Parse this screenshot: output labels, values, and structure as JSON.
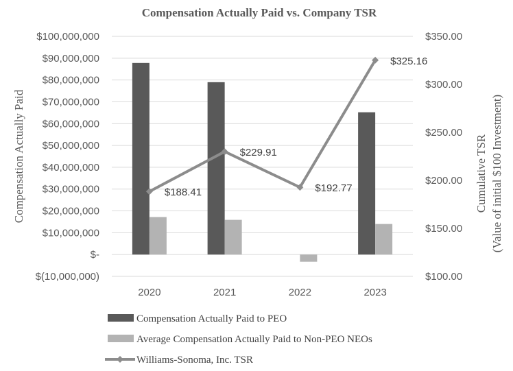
{
  "chart_data": {
    "type": "bar",
    "title": "Compensation Actually Paid vs. Company TSR",
    "categories": [
      "2020",
      "2021",
      "2022",
      "2023"
    ],
    "series": [
      {
        "name": "Compensation Actually Paid to PEO",
        "kind": "bar",
        "axis": "left",
        "color": "#595959",
        "values": [
          87800000,
          79000000,
          0,
          65200000
        ]
      },
      {
        "name": "Average Compensation Actually Paid to Non-PEO NEOs",
        "kind": "bar",
        "axis": "left",
        "color": "#b3b3b3",
        "values": [
          17200000,
          15900000,
          -3300000,
          14000000
        ]
      },
      {
        "name": "Williams-Sonoma, Inc. TSR",
        "kind": "line",
        "axis": "right",
        "color": "#8c8c8c",
        "values": [
          188.41,
          229.91,
          192.77,
          325.16
        ],
        "labels": [
          "$188.41",
          "$229.91",
          "$192.77",
          "$325.16"
        ]
      }
    ],
    "y_left": {
      "label": "Compensation Actually Paid",
      "ylim": [
        -10000000,
        100000000
      ],
      "ticks": [
        100000000,
        90000000,
        80000000,
        70000000,
        60000000,
        50000000,
        40000000,
        30000000,
        20000000,
        10000000,
        0,
        -10000000
      ],
      "tick_labels": [
        "$100,000,000",
        "$90,000,000",
        "$80,000,000",
        "$70,000,000",
        "$60,000,000",
        "$50,000,000",
        "$40,000,000",
        "$30,000,000",
        "$20,000,000",
        "$10,000,000",
        "$-",
        "$(10,000,000)"
      ]
    },
    "y_right": {
      "label": "Cumulative TSR",
      "label2": "(Value of initial $100 Investment)",
      "ylim": [
        100,
        350
      ],
      "ticks": [
        350,
        300,
        250,
        200,
        150,
        100
      ],
      "tick_labels": [
        "$350.00",
        "$300.00",
        "$250.00",
        "$200.00",
        "$150.00",
        "$100.00"
      ]
    },
    "grid": true,
    "legend_position": "bottom-left"
  }
}
